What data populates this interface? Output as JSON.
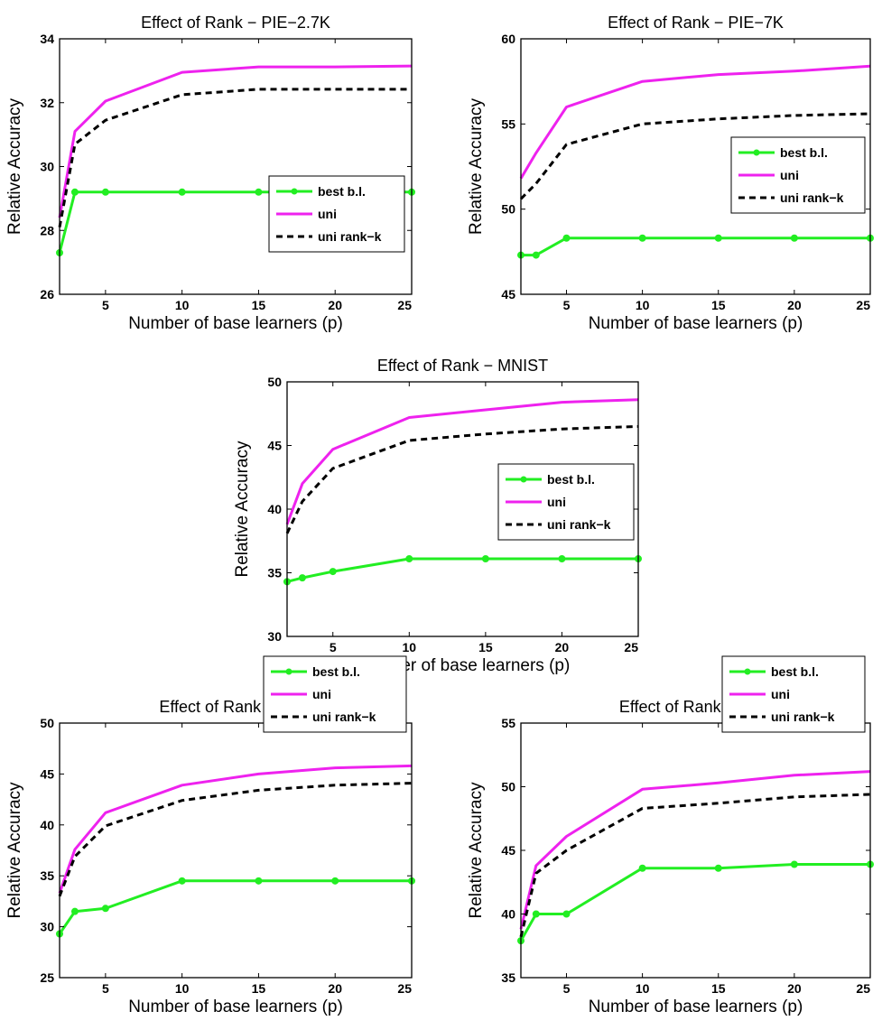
{
  "colors": {
    "best_bl": "#22ee22",
    "uni": "#ee22ee",
    "uni_rank_k": "#000000"
  },
  "legend_labels": [
    "best b.l.",
    "uni",
    "uni rank−k"
  ],
  "chart_data": [
    {
      "type": "line",
      "title": "Effect of Rank − PIE−2.7K",
      "xlabel": "Number of base learners (p)",
      "ylabel": "Relative Accuracy",
      "xlim": [
        2,
        25
      ],
      "ylim": [
        26,
        34
      ],
      "xticks": [
        5,
        10,
        15,
        20,
        25
      ],
      "yticks": [
        26,
        28,
        30,
        32,
        34
      ],
      "legend": "lower-right",
      "series": [
        {
          "name": "best b.l.",
          "x": [
            2,
            3,
            5,
            10,
            15,
            20,
            25
          ],
          "y": [
            27.3,
            29.2,
            29.2,
            29.2,
            29.2,
            29.2,
            29.2
          ]
        },
        {
          "name": "uni",
          "x": [
            2,
            3,
            5,
            10,
            15,
            20,
            25
          ],
          "y": [
            28.4,
            31.1,
            32.05,
            32.95,
            33.12,
            33.12,
            33.15
          ]
        },
        {
          "name": "uni rank−k",
          "x": [
            2,
            3,
            5,
            10,
            15,
            20,
            25
          ],
          "y": [
            28.1,
            30.7,
            31.45,
            32.25,
            32.42,
            32.42,
            32.42
          ]
        }
      ]
    },
    {
      "type": "line",
      "title": "Effect of Rank − PIE−7K",
      "xlabel": "Number of base learners (p)",
      "ylabel": "Relative Accuracy",
      "xlim": [
        2,
        25
      ],
      "ylim": [
        45,
        60
      ],
      "xticks": [
        5,
        10,
        15,
        20,
        25
      ],
      "yticks": [
        45,
        50,
        55,
        60
      ],
      "legend": "right",
      "series": [
        {
          "name": "best b.l.",
          "x": [
            2,
            3,
            5,
            10,
            15,
            20,
            25
          ],
          "y": [
            47.3,
            47.3,
            48.3,
            48.3,
            48.3,
            48.3,
            48.3
          ]
        },
        {
          "name": "uni",
          "x": [
            2,
            3,
            5,
            10,
            15,
            20,
            25
          ],
          "y": [
            51.8,
            53.3,
            56.0,
            57.5,
            57.9,
            58.1,
            58.4
          ]
        },
        {
          "name": "uni rank−k",
          "x": [
            2,
            3,
            5,
            10,
            15,
            20,
            25
          ],
          "y": [
            50.6,
            51.5,
            53.8,
            55.0,
            55.3,
            55.5,
            55.6
          ]
        }
      ]
    },
    {
      "type": "line",
      "title": "Effect of Rank − MNIST",
      "xlabel": "Number of base learners (p)",
      "ylabel": "Relative Accuracy",
      "xlim": [
        2,
        25
      ],
      "ylim": [
        30,
        50
      ],
      "xticks": [
        5,
        10,
        15,
        20,
        25
      ],
      "yticks": [
        30,
        35,
        40,
        45,
        50
      ],
      "legend": "right",
      "series": [
        {
          "name": "best b.l.",
          "x": [
            2,
            3,
            5,
            10,
            15,
            20,
            25
          ],
          "y": [
            34.3,
            34.6,
            35.1,
            36.1,
            36.1,
            36.1,
            36.1
          ]
        },
        {
          "name": "uni",
          "x": [
            2,
            3,
            5,
            10,
            15,
            20,
            25
          ],
          "y": [
            38.8,
            42.0,
            44.7,
            47.2,
            47.8,
            48.4,
            48.6
          ]
        },
        {
          "name": "uni rank−k",
          "x": [
            2,
            3,
            5,
            10,
            15,
            20,
            25
          ],
          "y": [
            38.1,
            40.6,
            43.2,
            45.4,
            45.9,
            46.3,
            46.5
          ]
        }
      ]
    },
    {
      "type": "line",
      "title": "Effect of Rank − ESS",
      "xlabel": "Number of base learners (p)",
      "ylabel": "Relative Accuracy",
      "xlim": [
        2,
        25
      ],
      "ylim": [
        25,
        50
      ],
      "xticks": [
        5,
        10,
        15,
        20,
        25
      ],
      "yticks": [
        25,
        30,
        35,
        40,
        45,
        50
      ],
      "legend": "lower-right",
      "series": [
        {
          "name": "best b.l.",
          "x": [
            2,
            3,
            5,
            10,
            15,
            20,
            25
          ],
          "y": [
            29.3,
            31.5,
            31.8,
            34.5,
            34.5,
            34.5,
            34.5
          ]
        },
        {
          "name": "uni",
          "x": [
            2,
            3,
            5,
            10,
            15,
            20,
            25
          ],
          "y": [
            33.3,
            37.6,
            41.2,
            43.9,
            45.0,
            45.6,
            45.8
          ]
        },
        {
          "name": "uni rank−k",
          "x": [
            2,
            3,
            5,
            10,
            15,
            20,
            25
          ],
          "y": [
            33.0,
            36.9,
            39.9,
            42.4,
            43.4,
            43.9,
            44.1
          ]
        }
      ]
    },
    {
      "type": "line",
      "title": "Effect of Rank − ABN",
      "xlabel": "Number of base learners (p)",
      "ylabel": "Relative Accuracy",
      "xlim": [
        2,
        25
      ],
      "ylim": [
        35,
        55
      ],
      "xticks": [
        5,
        10,
        15,
        20,
        25
      ],
      "yticks": [
        35,
        40,
        45,
        50,
        55
      ],
      "legend": "lower-right",
      "series": [
        {
          "name": "best b.l.",
          "x": [
            2,
            3,
            5,
            10,
            15,
            20,
            25
          ],
          "y": [
            37.9,
            40.0,
            40.0,
            43.6,
            43.6,
            43.9,
            43.9
          ]
        },
        {
          "name": "uni",
          "x": [
            2,
            3,
            5,
            10,
            15,
            20,
            25
          ],
          "y": [
            38.8,
            43.8,
            46.1,
            49.8,
            50.3,
            50.9,
            51.2
          ]
        },
        {
          "name": "uni rank−k",
          "x": [
            2,
            3,
            5,
            10,
            15,
            20,
            25
          ],
          "y": [
            38.2,
            43.2,
            45.0,
            48.3,
            48.7,
            49.2,
            49.4
          ]
        }
      ]
    }
  ]
}
